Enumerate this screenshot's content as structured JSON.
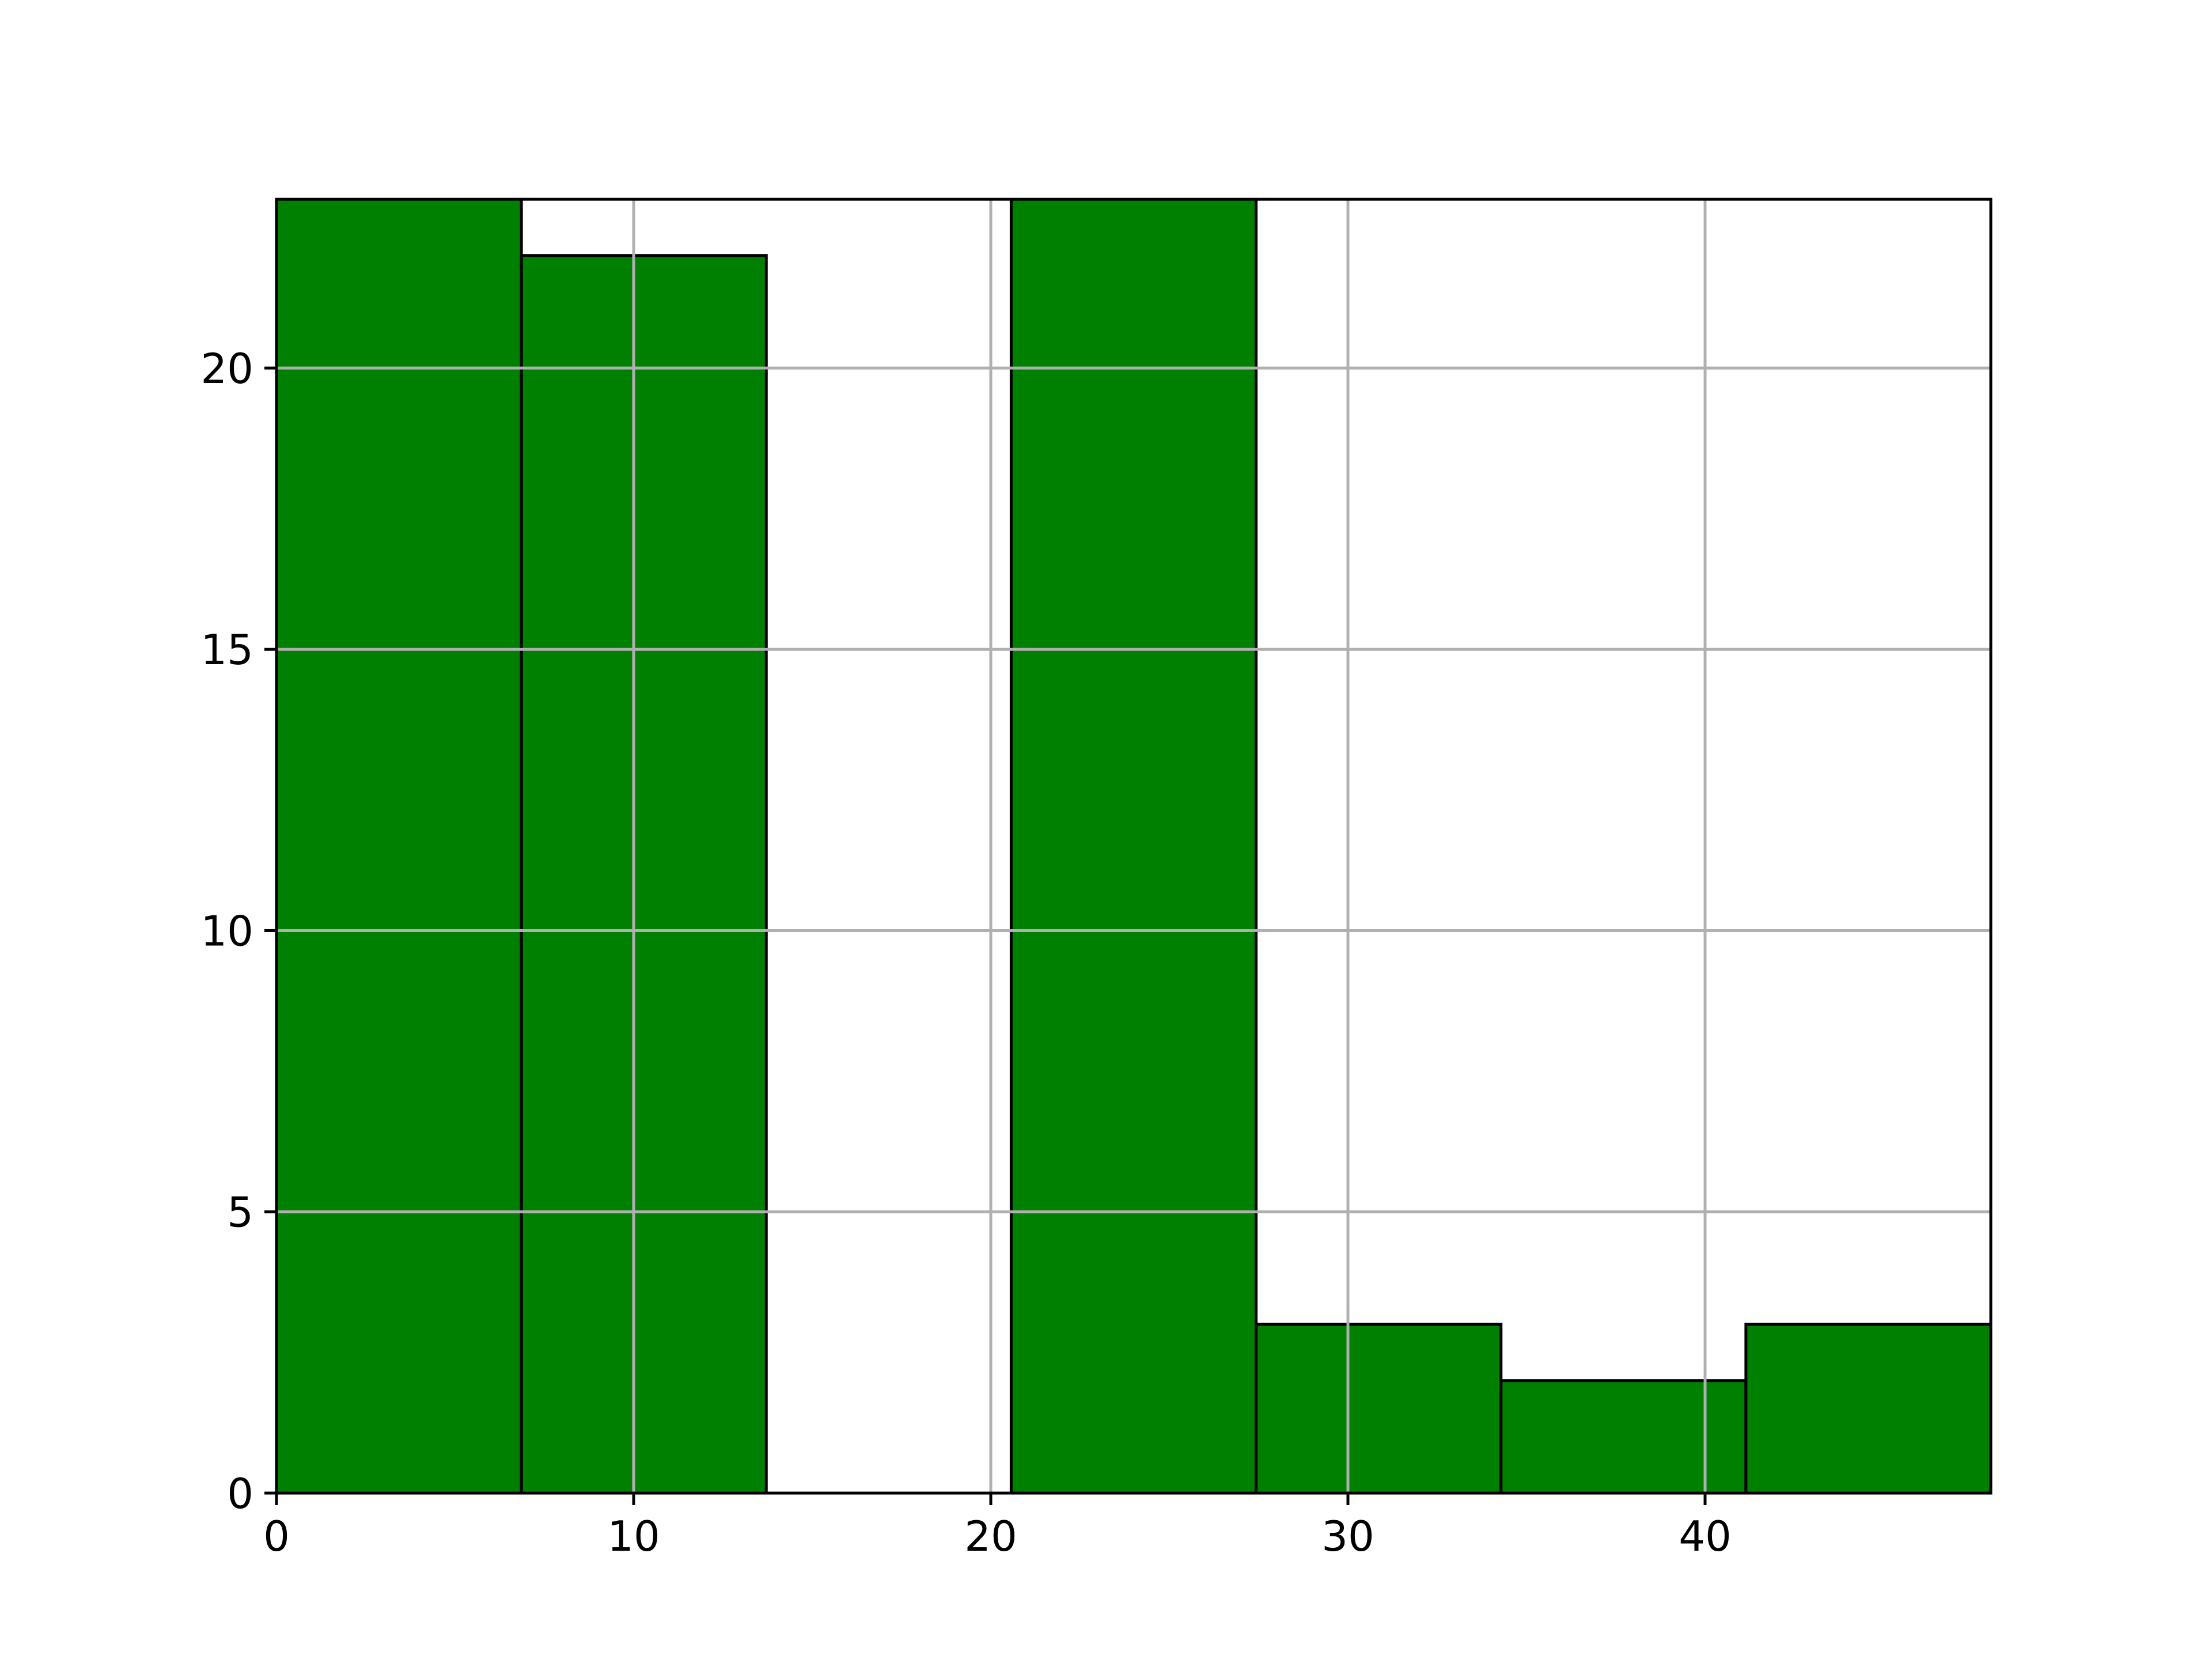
{
  "chart_data": {
    "type": "bar",
    "title": "",
    "xlabel": "",
    "ylabel": "",
    "xlim": [
      0,
      48
    ],
    "ylim": [
      0,
      23
    ],
    "grid": true,
    "bin_edges": [
      0,
      6.857,
      13.714,
      20.571,
      27.429,
      34.286,
      41.143,
      48
    ],
    "values": [
      23,
      22,
      0,
      23,
      3,
      2,
      3
    ],
    "x_ticks": [
      0,
      10,
      20,
      30,
      40
    ],
    "x_tick_labels": [
      "0",
      "10",
      "20",
      "30",
      "40"
    ],
    "y_ticks": [
      0,
      5,
      10,
      15,
      20
    ],
    "y_tick_labels": [
      "0",
      "5",
      "10",
      "15",
      "20"
    ],
    "bar_color": "#008000",
    "edge_color": "#000000",
    "grid_color": "#b0b0b0"
  }
}
